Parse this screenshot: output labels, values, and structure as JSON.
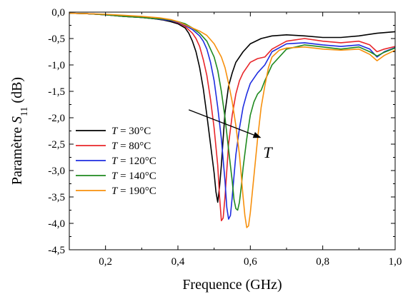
{
  "chart_data": {
    "type": "line",
    "xlabel": "Frequence (GHz)",
    "ylabel": "Paramètre S11 (dB)",
    "ylabel_parts": {
      "prefix": "Paramètre ",
      "symbol": "S",
      "subscript": "11",
      "suffix": " (dB)"
    },
    "xlim": [
      0.1,
      1.0
    ],
    "ylim": [
      -4.5,
      0.0
    ],
    "xticks": [
      0.2,
      0.4,
      0.6,
      0.8,
      1.0
    ],
    "xtick_labels": [
      "0,2",
      "0,4",
      "0,6",
      "0,8",
      "1,0"
    ],
    "yticks": [
      0.0,
      -0.5,
      -1.0,
      -1.5,
      -2.0,
      -2.5,
      -3.0,
      -3.5,
      -4.0,
      -4.5
    ],
    "ytick_labels": [
      "0,0",
      "-0,5",
      "-1,0",
      "-1,5",
      "-2,0",
      "-2,5",
      "-3,0",
      "-3,5",
      "-4,0",
      "-4,5"
    ],
    "grid": false,
    "legend_position": "left-center",
    "annotation": {
      "text": "T",
      "arrow_from": [
        0.43,
        -1.85
      ],
      "arrow_to": [
        0.63,
        -2.38
      ]
    },
    "series": [
      {
        "name": "T = 30°C",
        "legend_var": "T",
        "legend_rest": " = 30°C",
        "color": "#000000",
        "x": [
          0.1,
          0.15,
          0.2,
          0.25,
          0.3,
          0.33,
          0.36,
          0.38,
          0.4,
          0.42,
          0.43,
          0.44,
          0.45,
          0.46,
          0.47,
          0.48,
          0.49,
          0.5,
          0.505,
          0.51,
          0.515,
          0.52,
          0.525,
          0.53,
          0.54,
          0.55,
          0.56,
          0.58,
          0.6,
          0.63,
          0.66,
          0.7,
          0.75,
          0.8,
          0.85,
          0.9,
          0.95,
          1.0
        ],
        "y": [
          -0.02,
          -0.03,
          -0.05,
          -0.08,
          -0.1,
          -0.12,
          -0.15,
          -0.18,
          -0.22,
          -0.3,
          -0.4,
          -0.55,
          -0.75,
          -1.05,
          -1.45,
          -1.95,
          -2.5,
          -3.05,
          -3.4,
          -3.6,
          -3.3,
          -2.9,
          -2.4,
          -1.9,
          -1.4,
          -1.15,
          -0.95,
          -0.75,
          -0.6,
          -0.5,
          -0.45,
          -0.43,
          -0.45,
          -0.48,
          -0.48,
          -0.45,
          -0.4,
          -0.37
        ]
      },
      {
        "name": "T = 80°C",
        "legend_var": "T",
        "legend_rest": " = 80°C",
        "color": "#e8262a",
        "x": [
          0.1,
          0.15,
          0.2,
          0.25,
          0.3,
          0.33,
          0.36,
          0.38,
          0.4,
          0.42,
          0.44,
          0.45,
          0.46,
          0.47,
          0.48,
          0.49,
          0.5,
          0.51,
          0.515,
          0.52,
          0.525,
          0.53,
          0.535,
          0.54,
          0.55,
          0.56,
          0.57,
          0.58,
          0.6,
          0.62,
          0.64,
          0.66,
          0.7,
          0.75,
          0.8,
          0.85,
          0.9,
          0.93,
          0.95,
          0.97,
          1.0
        ],
        "y": [
          -0.02,
          -0.03,
          -0.05,
          -0.08,
          -0.1,
          -0.12,
          -0.14,
          -0.16,
          -0.2,
          -0.27,
          -0.4,
          -0.5,
          -0.65,
          -0.9,
          -1.2,
          -1.65,
          -2.2,
          -2.9,
          -3.5,
          -3.95,
          -3.9,
          -3.5,
          -3.0,
          -2.5,
          -1.95,
          -1.55,
          -1.3,
          -1.15,
          -0.95,
          -0.88,
          -0.85,
          -0.7,
          -0.55,
          -0.5,
          -0.55,
          -0.58,
          -0.55,
          -0.62,
          -0.75,
          -0.7,
          -0.65
        ]
      },
      {
        "name": "T = 120°C",
        "legend_var": "T",
        "legend_rest": " = 120°C",
        "color": "#1e2de0",
        "x": [
          0.1,
          0.15,
          0.2,
          0.25,
          0.3,
          0.33,
          0.36,
          0.38,
          0.4,
          0.42,
          0.44,
          0.46,
          0.47,
          0.48,
          0.49,
          0.5,
          0.51,
          0.52,
          0.53,
          0.535,
          0.54,
          0.545,
          0.55,
          0.555,
          0.56,
          0.57,
          0.58,
          0.59,
          0.6,
          0.62,
          0.64,
          0.66,
          0.7,
          0.75,
          0.8,
          0.85,
          0.9,
          0.93,
          0.95,
          0.97,
          1.0
        ],
        "y": [
          -0.02,
          -0.03,
          -0.05,
          -0.08,
          -0.1,
          -0.12,
          -0.14,
          -0.16,
          -0.19,
          -0.25,
          -0.33,
          -0.45,
          -0.55,
          -0.7,
          -0.95,
          -1.3,
          -1.8,
          -2.4,
          -3.2,
          -3.7,
          -3.92,
          -3.85,
          -3.5,
          -3.1,
          -2.7,
          -2.2,
          -1.8,
          -1.55,
          -1.35,
          -1.15,
          -1.0,
          -0.75,
          -0.6,
          -0.58,
          -0.62,
          -0.65,
          -0.62,
          -0.7,
          -0.85,
          -0.75,
          -0.67
        ]
      },
      {
        "name": "T = 140°C",
        "legend_var": "T",
        "legend_rest": " = 140°C",
        "color": "#1f8a1f",
        "x": [
          0.1,
          0.15,
          0.2,
          0.25,
          0.3,
          0.33,
          0.36,
          0.38,
          0.4,
          0.42,
          0.44,
          0.46,
          0.48,
          0.5,
          0.51,
          0.52,
          0.53,
          0.54,
          0.55,
          0.555,
          0.56,
          0.565,
          0.57,
          0.575,
          0.58,
          0.59,
          0.6,
          0.61,
          0.62,
          0.63,
          0.64,
          0.66,
          0.7,
          0.75,
          0.8,
          0.85,
          0.9,
          0.93,
          0.95,
          0.97,
          1.0
        ],
        "y": [
          -0.02,
          -0.03,
          -0.05,
          -0.08,
          -0.1,
          -0.12,
          -0.13,
          -0.15,
          -0.18,
          -0.22,
          -0.3,
          -0.4,
          -0.55,
          -0.85,
          -1.1,
          -1.5,
          -2.0,
          -2.6,
          -3.2,
          -3.55,
          -3.72,
          -3.75,
          -3.6,
          -3.3,
          -2.95,
          -2.4,
          -1.95,
          -1.7,
          -1.55,
          -1.48,
          -1.3,
          -1.0,
          -0.7,
          -0.62,
          -0.66,
          -0.7,
          -0.66,
          -0.75,
          -0.83,
          -0.76,
          -0.68
        ]
      },
      {
        "name": "T = 190°C",
        "legend_var": "T",
        "legend_rest": " = 190°C",
        "color": "#f7900d",
        "x": [
          0.1,
          0.15,
          0.2,
          0.25,
          0.3,
          0.35,
          0.38,
          0.4,
          0.42,
          0.44,
          0.46,
          0.48,
          0.5,
          0.52,
          0.53,
          0.54,
          0.55,
          0.56,
          0.57,
          0.575,
          0.58,
          0.585,
          0.59,
          0.595,
          0.6,
          0.61,
          0.62,
          0.63,
          0.64,
          0.65,
          0.66,
          0.68,
          0.7,
          0.75,
          0.8,
          0.85,
          0.9,
          0.93,
          0.95,
          0.97,
          1.0
        ],
        "y": [
          -0.02,
          -0.03,
          -0.04,
          -0.06,
          -0.08,
          -0.11,
          -0.14,
          -0.18,
          -0.24,
          -0.3,
          -0.36,
          -0.44,
          -0.6,
          -0.85,
          -1.05,
          -1.35,
          -1.7,
          -2.15,
          -2.7,
          -3.1,
          -3.5,
          -3.85,
          -4.08,
          -4.05,
          -3.8,
          -3.1,
          -2.4,
          -1.8,
          -1.4,
          -1.05,
          -0.85,
          -0.72,
          -0.68,
          -0.66,
          -0.7,
          -0.72,
          -0.7,
          -0.8,
          -0.92,
          -0.82,
          -0.72
        ]
      }
    ]
  }
}
